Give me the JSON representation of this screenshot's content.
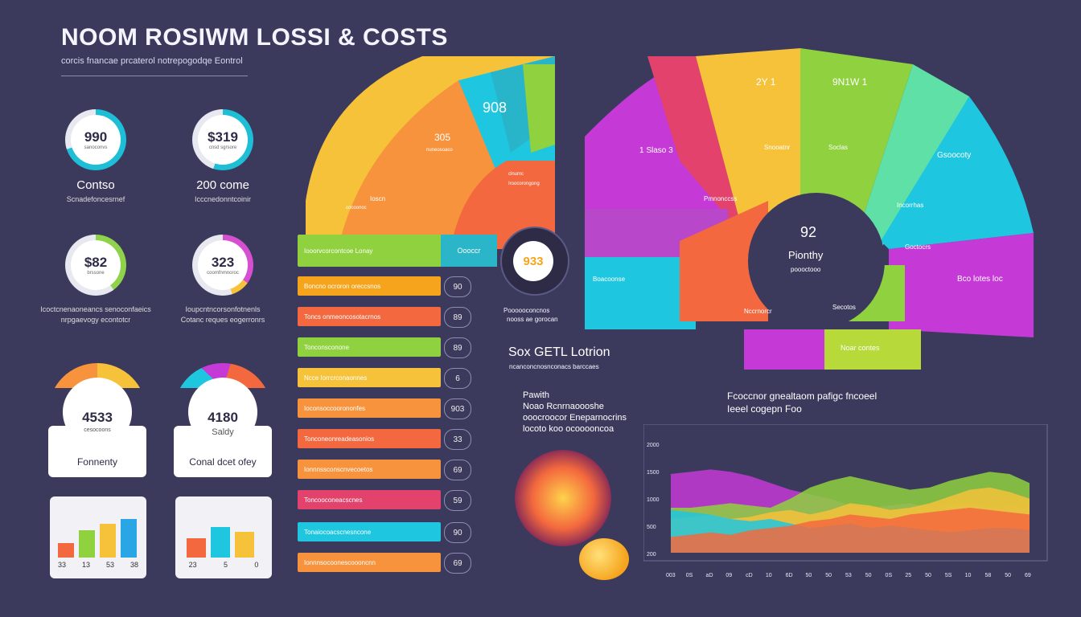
{
  "header": {
    "title": "NOOM ROSIWM LOSSI & COSTS",
    "subtitle": "corcis fnancae prcaterol notrepogodqe Eontrol"
  },
  "stats": [
    {
      "value": "990",
      "caption": "sanoconvs",
      "label": "Contso",
      "sub": "Scnadefoncesrnef",
      "ring": "#1ebfd6"
    },
    {
      "value": "$319",
      "caption": "cnsd sgrsore",
      "label": "200 come",
      "sub": "Icccnedonntcoinir",
      "ring": "#1ebfd6"
    },
    {
      "value": "$82",
      "caption": "brssone",
      "label": "",
      "sub": "Icoctcnenaoneancs senoconfaeics",
      "sub2": "nrpgaevogy econtotcr",
      "ring": "#8ed34a"
    },
    {
      "value": "323",
      "caption": "coomfnmnoroc",
      "label": "",
      "sub": "Ioupcntncorsonfotnenls",
      "sub2": "Cotanc reques eogerronrs",
      "ring": "#d64fd0"
    }
  ],
  "gauges": [
    {
      "value": "4533",
      "caption": "cesocoons",
      "name": "Fonnenty"
    },
    {
      "value": "4180",
      "caption": "Saldy",
      "name": "Conal dcet ofey"
    }
  ],
  "mini_charts": [
    {
      "labels": [
        "33",
        "13",
        "53",
        "38"
      ]
    },
    {
      "labels": [
        "23",
        "5",
        "0"
      ]
    }
  ],
  "fan_left": {
    "labels": [
      "908",
      "305",
      "nuneosoaco",
      "Ioscn",
      "cocoonoc",
      "clnumc",
      "Iroocorongong"
    ],
    "center_value": "933"
  },
  "fan_right": {
    "segment_labels": [
      "2Y 1",
      "9N1W 1",
      "1 Slaso 3",
      "Soclas",
      "Gsoocoty",
      "Snooatnr",
      "Pmnonccss",
      "Incorrhas",
      "Goctocrs",
      "Boacoonse",
      "Nccrnorcr",
      "Secotos",
      "Bco lotes loc",
      "Noar contes"
    ],
    "center_value": "92",
    "center_label": "Pionthy",
    "center_sub": "poooctooo"
  },
  "bars": {
    "header_label": "Iooorvcorcontcoe Lonay",
    "header_side": "Oooccr",
    "rows": [
      {
        "label": "Boncno ocroron oreccsnos",
        "value": "90"
      },
      {
        "label": "Toncs onmeoncosotacrnos",
        "value": "89"
      },
      {
        "label": "Tonconsconone",
        "value": "89"
      },
      {
        "label": "Ncce Iorrcrconaonnes",
        "value": "6"
      },
      {
        "label": "Ioconsoccoorononfes",
        "value": "903"
      },
      {
        "label": "Tonconeonreadeasonios",
        "value": "33"
      },
      {
        "label": "Ionnnssconscnvecoetos",
        "value": "69"
      },
      {
        "label": "Toncooconeacscnes",
        "value": "59"
      },
      {
        "label": "Tonaiocoacscnesncone",
        "value": "90"
      },
      {
        "label": "Ionnnsocoonescoooncnn",
        "value": "69"
      }
    ]
  },
  "center_note": {
    "cost_text": "Sox GETL Lotrion",
    "cost_sub": "ncanconcnosnconacs barccaes",
    "small_a": "Poooooconcnos",
    "small_b": "nooss ae gorocan",
    "title": "Pawith",
    "line1": "Noao Rcnrnaoooshe",
    "line2": "ooocroocor Eneparnocrins",
    "line3": "locoto koo ocooooncoa"
  },
  "area_chart": {
    "title": "Fcoccnor gnealtaom pafigc fncoeel",
    "title2": "Ieeel cogepn Foo"
  },
  "chart_data": {
    "type": "area",
    "x": [
      "003",
      "0S",
      "aD",
      "09",
      "cD",
      "10",
      "6D",
      "50",
      "50",
      "53",
      "50",
      "0S",
      "25",
      "50",
      "5S",
      "10",
      "58",
      "50",
      "69"
    ],
    "y_ticks": [
      "2000",
      "1500",
      "1000",
      "500",
      "200"
    ],
    "series": [
      {
        "color": "#c53ad6",
        "values": [
          70,
          72,
          74,
          72,
          68,
          62,
          56,
          52,
          48,
          42,
          40,
          42,
          44,
          40,
          42,
          44,
          40,
          42,
          40
        ]
      },
      {
        "color": "#8fd13e",
        "values": [
          40,
          40,
          42,
          44,
          42,
          40,
          48,
          58,
          64,
          68,
          64,
          60,
          56,
          58,
          64,
          68,
          72,
          70,
          62
        ]
      },
      {
        "color": "#f6c23a",
        "values": [
          30,
          32,
          34,
          30,
          32,
          36,
          38,
          34,
          38,
          44,
          42,
          38,
          40,
          44,
          50,
          56,
          58,
          54,
          48
        ]
      },
      {
        "color": "#1fc6e0",
        "values": [
          38,
          36,
          34,
          30,
          28,
          30,
          26,
          22,
          24,
          26,
          22,
          24,
          22,
          20,
          18,
          20,
          22,
          22,
          20
        ]
      },
      {
        "color": "#f3683e",
        "values": [
          14,
          16,
          18,
          16,
          20,
          22,
          24,
          28,
          30,
          34,
          32,
          30,
          34,
          36,
          38,
          40,
          38,
          36,
          34
        ]
      }
    ],
    "ylim": [
      0,
      100
    ]
  }
}
